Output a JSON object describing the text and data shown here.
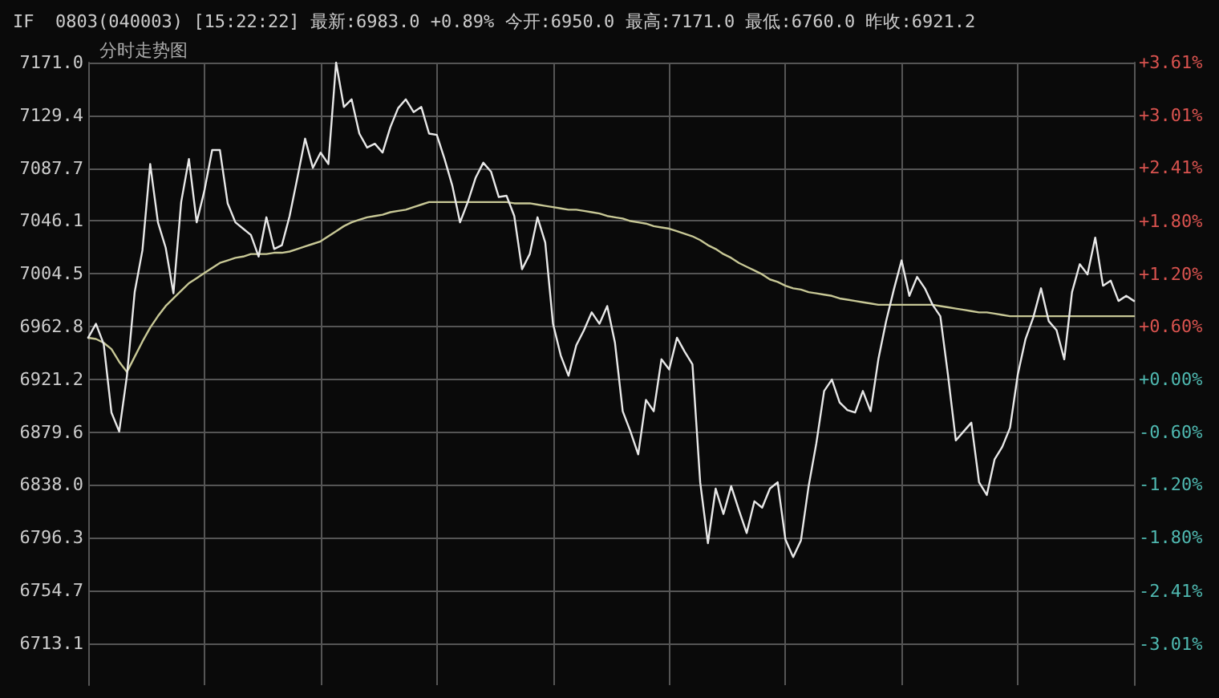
{
  "chart_data": {
    "type": "line",
    "title": "IF  0803(040003) [15:22:22] 最新:6983.0 +0.89% 今开:6950.0 最高:7171.0 最低:6760.0 昨收:6921.2",
    "subtitle": "分时走势图",
    "categories": [
      null,
      null,
      null,
      null,
      null,
      null,
      null,
      null,
      null,
      null,
      null,
      null,
      null,
      null,
      null,
      null,
      null,
      null,
      null,
      null,
      null,
      null,
      null,
      null,
      null,
      null,
      null,
      null,
      null,
      null,
      null,
      null,
      null,
      null,
      null,
      null,
      null,
      null,
      null,
      null,
      null,
      null,
      null,
      null,
      null,
      null,
      null,
      null,
      null,
      null,
      null,
      null,
      null,
      null,
      null,
      null,
      null,
      null,
      null,
      null,
      null,
      null,
      null,
      null,
      null,
      null,
      null,
      null,
      null,
      null,
      null,
      null,
      null,
      null,
      null,
      null,
      null,
      null,
      null,
      null,
      null,
      null,
      null,
      null,
      null,
      null,
      null,
      null,
      null,
      null,
      null,
      null,
      null,
      null,
      null,
      null,
      null,
      null,
      null,
      null,
      null,
      null,
      null,
      null,
      null,
      null,
      null,
      null,
      null,
      null,
      null,
      null,
      null,
      null,
      null,
      null,
      null,
      null,
      null,
      null,
      null,
      null,
      null,
      null,
      null,
      null,
      null,
      null,
      null,
      null,
      null,
      null,
      null,
      null,
      null,
      null
    ],
    "ylim": [
      6680,
      7171
    ],
    "yticks": [
      {
        "value": 6713.1,
        "label": "6713.1"
      },
      {
        "value": 6754.7,
        "label": "6754.7"
      },
      {
        "value": 6796.3,
        "label": "6796.3"
      },
      {
        "value": 6838,
        "label": "6838.0"
      },
      {
        "value": 6879.6,
        "label": "6879.6"
      },
      {
        "value": 6921.2,
        "label": "6921.2"
      },
      {
        "value": 6962.8,
        "label": "6962.8"
      },
      {
        "value": 7004.5,
        "label": "7004.5"
      },
      {
        "value": 7046.1,
        "label": "7046.1"
      },
      {
        "value": 7087.7,
        "label": "7087.7"
      },
      {
        "value": 7129.4,
        "label": "7129.4"
      },
      {
        "value": 7171,
        "label": "7171.0"
      }
    ],
    "y2lim": [
      -3.48,
      3.61
    ],
    "y2ticks": [
      {
        "value": -3.01,
        "label": "-3.01%"
      },
      {
        "value": -2.41,
        "label": "-2.41%"
      },
      {
        "value": -1.8,
        "label": "-1.80%"
      },
      {
        "value": -1.2,
        "label": "-1.20%"
      },
      {
        "value": -0.6,
        "label": "-0.60%"
      },
      {
        "value": 0,
        "label": "+0.00%"
      },
      {
        "value": 0.6,
        "label": "+0.60%"
      },
      {
        "value": 1.2,
        "label": "+1.20%"
      },
      {
        "value": 1.8,
        "label": "+1.80%"
      },
      {
        "value": 2.41,
        "label": "+2.41%"
      },
      {
        "value": 3.01,
        "label": "+3.01%"
      },
      {
        "value": 3.61,
        "label": "+3.61%"
      }
    ],
    "grid": true,
    "marker": "none",
    "series": [
      {
        "color": "#e8e8e8",
        "values": [
          6954,
          6965,
          6949,
          6895,
          6880,
          6924,
          6990,
          7023,
          7091,
          7045,
          7025,
          6989,
          7061,
          7095,
          7045,
          7070,
          7102,
          7102,
          7060,
          7045,
          7040,
          7035,
          7018,
          7049,
          7024,
          7027,
          7050,
          7080,
          7111,
          7088,
          7100,
          7091,
          7171,
          7136,
          7142,
          7115,
          7104,
          7107,
          7100,
          7120,
          7135,
          7142,
          7132,
          7136,
          7115,
          7114,
          7095,
          7074,
          7045,
          7061,
          7080,
          7092,
          7085,
          7065,
          7066,
          7050,
          7008,
          7020,
          7049,
          7029,
          6965,
          6940,
          6924,
          6948,
          6960,
          6974,
          6965,
          6979,
          6950,
          6896,
          6880,
          6862,
          6905,
          6896,
          6937,
          6929,
          6954,
          6943,
          6933,
          6840,
          6792,
          6835,
          6815,
          6837,
          6818,
          6800,
          6825,
          6820,
          6835,
          6840,
          6795,
          6781,
          6794,
          6837,
          6871,
          6912,
          6921,
          6903,
          6897,
          6895,
          6912,
          6896,
          6937,
          6967,
          6992,
          7015,
          6987,
          7002,
          6993,
          6980,
          6971,
          6924,
          6873,
          6880,
          6887,
          6840,
          6830,
          6858,
          6868,
          6883,
          6925,
          6953,
          6970,
          6993,
          6967,
          6960,
          6937,
          6990,
          7012,
          7004,
          7033,
          6995,
          6999,
          6983,
          6987,
          6983
        ]
      },
      {
        "color": "#c8c896",
        "values": [
          6954,
          6953,
          6950,
          6945,
          6935,
          6927,
          6939,
          6951,
          6962,
          6971,
          6979,
          6985,
          6991,
          6997,
          7001,
          7005,
          7009,
          7013,
          7015,
          7017,
          7018,
          7020,
          7020,
          7020,
          7021,
          7021,
          7022,
          7024,
          7026,
          7028,
          7030,
          7034,
          7038,
          7042,
          7045,
          7047,
          7049,
          7050,
          7051,
          7053,
          7054,
          7055,
          7057,
          7059,
          7061,
          7061,
          7061,
          7061,
          7061,
          7061,
          7061,
          7061,
          7061,
          7061,
          7061,
          7060,
          7060,
          7060,
          7059,
          7058,
          7057,
          7056,
          7055,
          7055,
          7054,
          7053,
          7052,
          7050,
          7049,
          7048,
          7046,
          7045,
          7044,
          7042,
          7041,
          7040,
          7038,
          7036,
          7034,
          7031,
          7027,
          7024,
          7020,
          7017,
          7013,
          7010,
          7007,
          7004,
          7000,
          6998,
          6995,
          6993,
          6992,
          6990,
          6989,
          6988,
          6987,
          6985,
          6984,
          6983,
          6982,
          6981,
          6980,
          6980,
          6980,
          6980,
          6980,
          6980,
          6980,
          6980,
          6979,
          6978,
          6977,
          6976,
          6975,
          6974,
          6974,
          6973,
          6972,
          6971,
          6971,
          6971,
          6971,
          6971,
          6971,
          6971,
          6971,
          6971,
          6971,
          6971,
          6971,
          6971,
          6971,
          6971,
          6971,
          6971
        ]
      }
    ]
  }
}
